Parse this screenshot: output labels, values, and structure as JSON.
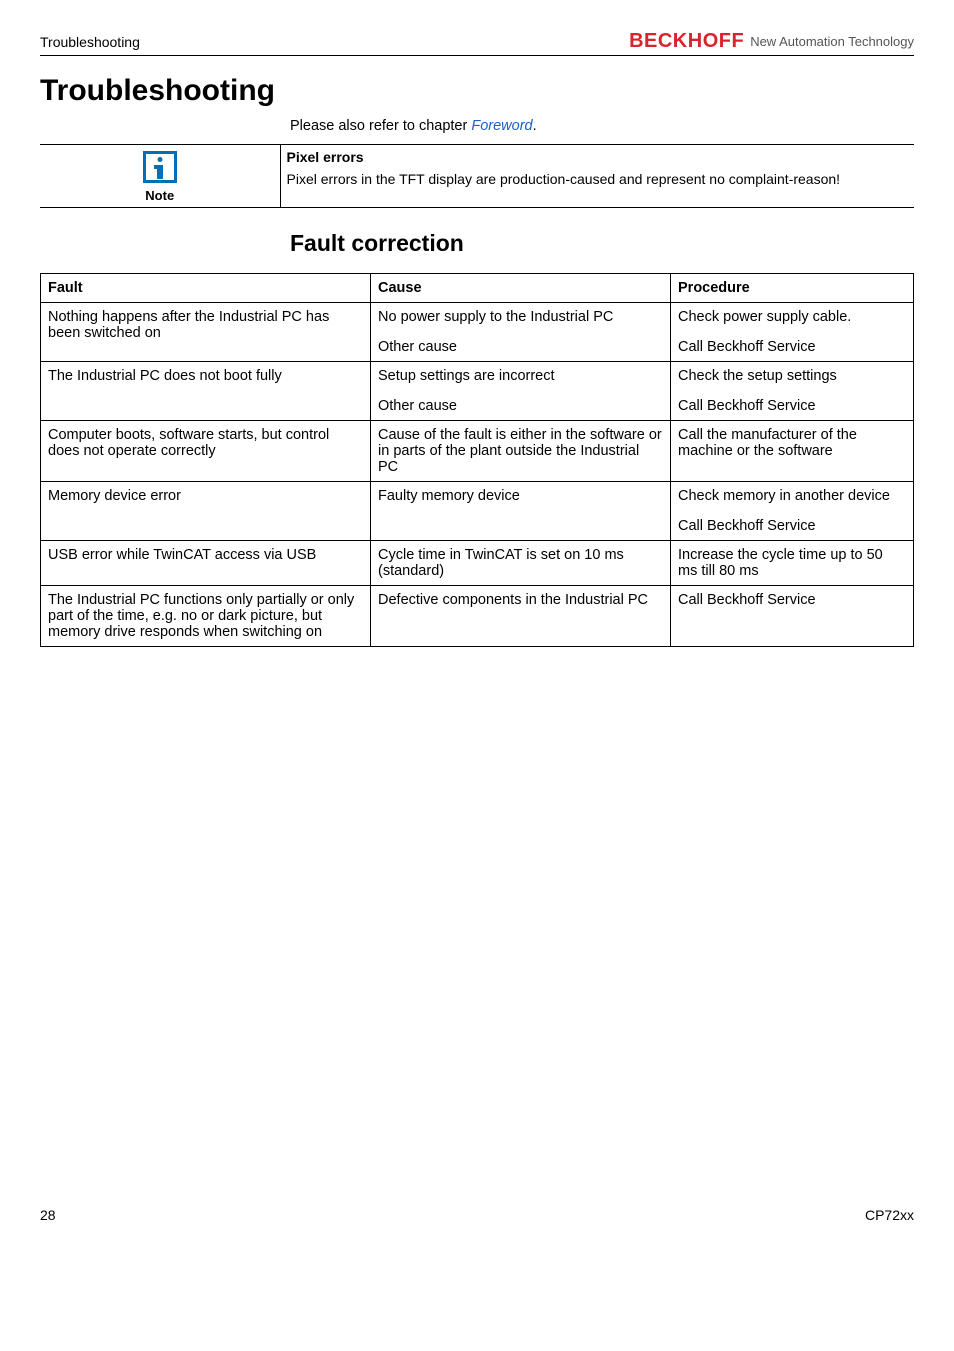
{
  "header": {
    "section": "Troubleshooting",
    "brand": "BECKHOFF",
    "tagline": "New Automation Technology"
  },
  "title": "Troubleshooting",
  "intro": {
    "prefix": "Please also refer to chapter ",
    "link": "Foreword",
    "suffix": "."
  },
  "note": {
    "label": "Note",
    "title": "Pixel errors",
    "body": "Pixel errors in the TFT display are production-caused and represent no complaint-reason!"
  },
  "section_heading": "Fault correction",
  "table": {
    "headers": {
      "fault": "Fault",
      "cause": "Cause",
      "procedure": "Procedure"
    },
    "rows": [
      {
        "fault": "Nothing happens after the Industrial PC has been switched on",
        "cause": [
          "No power supply to the Industrial PC",
          "Other cause"
        ],
        "procedure": [
          "Check power supply cable.",
          "Call Beckhoff Service"
        ]
      },
      {
        "fault": "The Industrial PC does not boot fully",
        "cause": [
          "Setup settings are incorrect",
          "Other cause"
        ],
        "procedure": [
          "Check the setup settings",
          "Call Beckhoff Service"
        ]
      },
      {
        "fault": "Computer boots, software starts, but control does not operate correctly",
        "cause": [
          "Cause of the fault is either in the software or in parts of the plant outside the Industrial PC"
        ],
        "procedure": [
          "Call the manufacturer of the machine or the software"
        ]
      },
      {
        "fault": "Memory device error",
        "cause": [
          "Faulty memory device"
        ],
        "procedure": [
          "Check memory in another device",
          "Call Beckhoff Service"
        ]
      },
      {
        "fault": "USB error while TwinCAT access via USB",
        "cause": [
          "Cycle time in TwinCAT is set on 10 ms (standard)"
        ],
        "procedure": [
          "Increase the cycle time up to 50 ms till 80 ms"
        ]
      },
      {
        "fault": "The Industrial PC functions only partially or only part of the time, e.g. no or dark picture, but memory drive responds when switching on",
        "cause": [
          "Defective components in the Industrial PC"
        ],
        "procedure": [
          "Call Beckhoff Service"
        ]
      }
    ]
  },
  "footer": {
    "page": "28",
    "doc": "CP72xx"
  }
}
